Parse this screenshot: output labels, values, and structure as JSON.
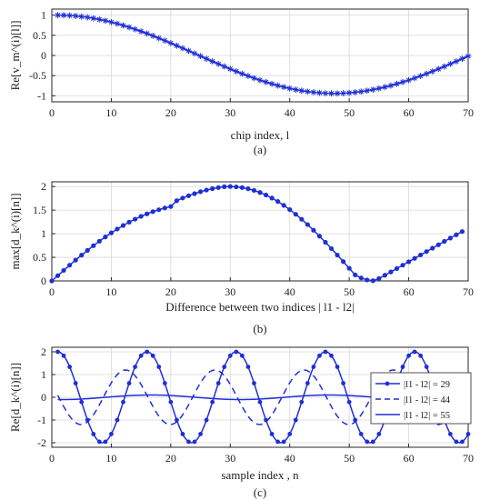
{
  "colors": {
    "series": "#1f2fd6",
    "axis": "#262626",
    "grid": "#d9d9d9"
  },
  "chart_data": [
    {
      "type": "line",
      "marker": "asterisk",
      "xlabel": "chip index,  l",
      "ylabel": "Re[v_m^(i)[l]]",
      "caption": "(a)",
      "xlim": [
        0,
        70
      ],
      "ylim": [
        -1.15,
        1.15
      ],
      "xticks": [
        0,
        10,
        20,
        30,
        40,
        50,
        60,
        70
      ],
      "yticks": [
        -1,
        -0.5,
        0,
        0.5,
        1
      ],
      "grid": true,
      "series": [
        {
          "x": [
            1,
            2,
            3,
            4,
            5,
            6,
            7,
            8,
            9,
            10,
            11,
            12,
            13,
            14,
            15,
            16,
            17,
            18,
            19,
            20,
            21,
            22,
            23,
            24,
            25,
            26,
            27,
            28,
            29,
            30,
            31,
            32,
            33,
            34,
            35,
            36,
            37,
            38,
            39,
            40,
            41,
            42,
            43,
            44,
            45,
            46,
            47,
            48,
            49,
            50,
            51,
            52,
            53,
            54,
            55,
            56,
            57,
            58,
            59,
            60,
            61,
            62,
            63,
            64,
            65,
            66,
            67,
            68,
            69,
            70
          ],
          "y": [
            1.0,
            0.998,
            0.991,
            0.98,
            0.965,
            0.946,
            0.922,
            0.894,
            0.862,
            0.827,
            0.788,
            0.745,
            0.699,
            0.65,
            0.598,
            0.544,
            0.487,
            0.428,
            0.368,
            0.306,
            0.243,
            0.179,
            0.114,
            0.049,
            -0.016,
            -0.082,
            -0.146,
            -0.21,
            -0.273,
            -0.335,
            -0.395,
            -0.453,
            -0.509,
            -0.562,
            -0.613,
            -0.66,
            -0.705,
            -0.747,
            -0.784,
            -0.818,
            -0.848,
            -0.874,
            -0.896,
            -0.914,
            -0.928,
            -0.937,
            -0.941,
            -0.941,
            -0.937,
            -0.928,
            -0.914,
            -0.896,
            -0.874,
            -0.848,
            -0.818,
            -0.784,
            -0.747,
            -0.705,
            -0.66,
            -0.613,
            -0.562,
            -0.509,
            -0.453,
            -0.395,
            -0.335,
            -0.273,
            -0.21,
            -0.146,
            -0.082,
            -0.016
          ]
        }
      ]
    },
    {
      "type": "line",
      "marker": "dot",
      "xlabel": "Difference between two indices | l1 - l2|",
      "ylabel": "max[d_k^(i)[n]]",
      "caption": "(b)",
      "xlim": [
        0,
        70
      ],
      "ylim": [
        0,
        2.1
      ],
      "xticks": [
        0,
        10,
        20,
        30,
        40,
        50,
        60,
        70
      ],
      "yticks": [
        0,
        0.5,
        1,
        1.5,
        2
      ],
      "grid": true,
      "series": [
        {
          "x": [
            0,
            1,
            2,
            3,
            4,
            5,
            6,
            7,
            8,
            9,
            10,
            11,
            12,
            13,
            14,
            15,
            16,
            17,
            18,
            19,
            20,
            21,
            22,
            23,
            24,
            25,
            26,
            27,
            28,
            29,
            30,
            31,
            32,
            33,
            34,
            35,
            36,
            37,
            38,
            39,
            40,
            41,
            42,
            43,
            44,
            45,
            46,
            47,
            48,
            49,
            50,
            51,
            52,
            53,
            54,
            55,
            56,
            57,
            58,
            59,
            60,
            61,
            62,
            63,
            64,
            65,
            66,
            67,
            68,
            69
          ],
          "y": [
            0.0,
            0.112,
            0.223,
            0.333,
            0.441,
            0.546,
            0.648,
            0.747,
            0.842,
            0.932,
            1.018,
            1.099,
            1.175,
            1.245,
            1.309,
            1.368,
            1.421,
            1.468,
            1.509,
            1.545,
            1.576,
            1.7,
            1.757,
            1.805,
            1.85,
            1.89,
            1.925,
            1.955,
            1.978,
            1.996,
            2.0,
            1.993,
            1.978,
            1.953,
            1.918,
            1.874,
            1.82,
            1.756,
            1.683,
            1.601,
            1.511,
            1.412,
            1.306,
            1.193,
            1.074,
            0.949,
            0.819,
            0.685,
            0.548,
            0.409,
            0.268,
            0.128,
            0.064,
            0.02,
            0.005,
            0.05,
            0.12,
            0.19,
            0.262,
            0.334,
            0.406,
            0.478,
            0.55,
            0.622,
            0.694,
            0.766,
            0.838,
            0.908,
            0.978,
            1.046
          ]
        }
      ]
    },
    {
      "type": "line",
      "xlabel": "sample index ,  n",
      "ylabel": "Re[d_k^(i)[n]]",
      "caption": "(c)",
      "xlim": [
        0,
        70
      ],
      "ylim": [
        -2.2,
        2.2
      ],
      "xticks": [
        0,
        10,
        20,
        30,
        40,
        50,
        60,
        70
      ],
      "yticks": [
        -2,
        -1,
        0,
        1,
        2
      ],
      "grid": true,
      "legend_position": "right",
      "series": [
        {
          "name": "|l1 - l2| = 29",
          "style": "solid-dot",
          "period": 15,
          "amp": 2.0,
          "phase": 0.0
        },
        {
          "name": "|l1 - l2| = 44",
          "style": "dashed",
          "period": 15,
          "amp": 1.2,
          "phase": 1.5
        },
        {
          "name": "|l1 - l2| = 55",
          "style": "solid",
          "period": 30,
          "amp": 0.1,
          "phase": 3.0
        }
      ]
    }
  ]
}
